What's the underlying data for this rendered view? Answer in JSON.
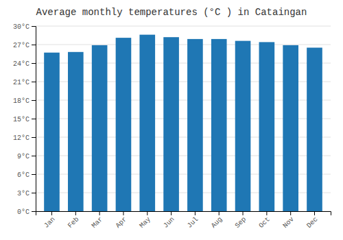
{
  "chart_data": {
    "type": "bar",
    "title": "Average monthly temperatures (°C ) in Cataingan",
    "categories": [
      "Jan",
      "Feb",
      "Mar",
      "Apr",
      "May",
      "Jun",
      "Jul",
      "Aug",
      "Sep",
      "Oct",
      "Nov",
      "Dec"
    ],
    "values": [
      25.7,
      25.8,
      26.9,
      28.1,
      28.6,
      28.2,
      27.9,
      27.9,
      27.6,
      27.4,
      26.9,
      26.5
    ],
    "ylim": [
      0,
      30
    ],
    "yticks": [
      {
        "value": 0,
        "label": "0°C"
      },
      {
        "value": 3,
        "label": "3°C"
      },
      {
        "value": 6,
        "label": "6°C"
      },
      {
        "value": 9,
        "label": "9°C"
      },
      {
        "value": 12,
        "label": "12°C"
      },
      {
        "value": 15,
        "label": "15°C"
      },
      {
        "value": 18,
        "label": "18°C"
      },
      {
        "value": 21,
        "label": "21°C"
      },
      {
        "value": 24,
        "label": "24°C"
      },
      {
        "value": 27,
        "label": "27°C"
      },
      {
        "value": 30,
        "label": "30°C"
      }
    ],
    "grid": true
  }
}
